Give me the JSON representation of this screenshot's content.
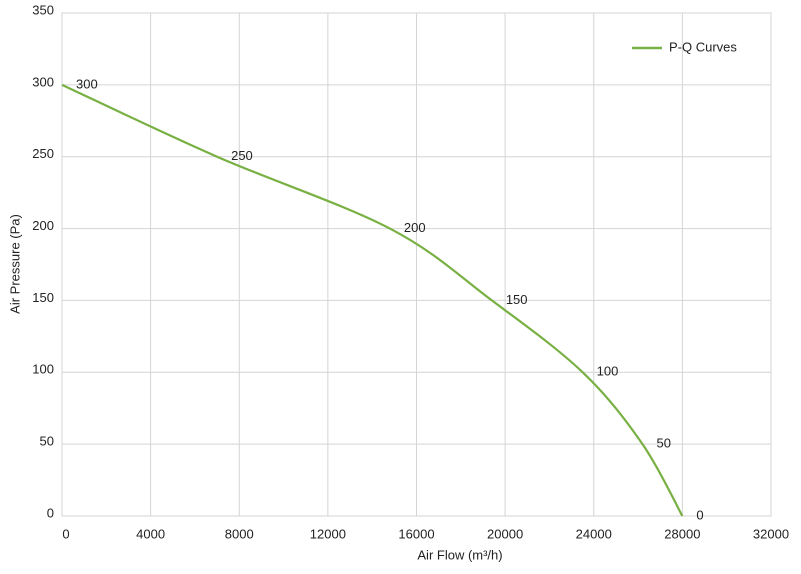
{
  "chart_data": {
    "type": "line",
    "x_label": "Air Flow  (m³/h)",
    "y_label": "Air Pressure  (Pa)",
    "x": [
      0,
      7000,
      14800,
      19400,
      23500,
      26200,
      28000
    ],
    "series": [
      {
        "name": "P-Q Curves",
        "color": "#78b043",
        "values": [
          300,
          250,
          200,
          150,
          100,
          50,
          0
        ]
      }
    ],
    "xlim": [
      0,
      32000
    ],
    "xticks": [
      0,
      4000,
      8000,
      12000,
      16000,
      20000,
      24000,
      28000,
      32000
    ],
    "ylim": [
      0,
      350
    ],
    "yticks": [
      0,
      50,
      100,
      150,
      200,
      250,
      300,
      350
    ],
    "grid": true,
    "legend": "top-right"
  }
}
